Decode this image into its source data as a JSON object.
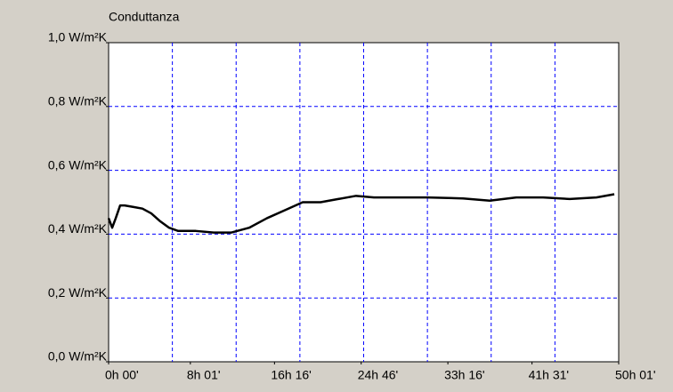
{
  "chart_data": {
    "type": "line",
    "title": "Conduttanza",
    "x": [
      0,
      21,
      42,
      68,
      94,
      147,
      199,
      251,
      304,
      356,
      409,
      513,
      618,
      723,
      827,
      932,
      1037,
      1142,
      1247,
      1351,
      1456,
      1561,
      1718,
      1875,
      2085,
      2242,
      2399,
      2556,
      2713,
      2870,
      2975
    ],
    "series": [
      {
        "color": "#000000",
        "values": [
          0.45,
          0.42,
          0.45,
          0.49,
          0.49,
          0.485,
          0.48,
          0.465,
          0.44,
          0.42,
          0.41,
          0.41,
          0.405,
          0.405,
          0.42,
          0.45,
          0.475,
          0.5,
          0.5,
          0.51,
          0.52,
          0.515,
          0.515,
          0.515,
          0.512,
          0.505,
          0.515,
          0.515,
          0.51,
          0.515,
          0.525
        ]
      }
    ],
    "xlim": [
      0,
      3001
    ],
    "xticks": [
      {
        "value": 0,
        "label": "0h 00'"
      },
      {
        "value": 481,
        "label": "8h 01'"
      },
      {
        "value": 976,
        "label": "16h 16'"
      },
      {
        "value": 1486,
        "label": "24h 46'"
      },
      {
        "value": 1996,
        "label": "33h 16'"
      },
      {
        "value": 2491,
        "label": "41h 31'"
      },
      {
        "value": 3001,
        "label": "50h 01'"
      }
    ],
    "ylim": [
      0,
      1
    ],
    "yticks": [
      {
        "value": 0,
        "label": "0,0 W/m²K"
      },
      {
        "value": 0.2,
        "label": "0,2 W/m²K"
      },
      {
        "value": 0.4,
        "label": "0,4 W/m²K"
      },
      {
        "value": 0.6,
        "label": "0,6 W/m²K"
      },
      {
        "value": 0.8,
        "label": "0,8 W/m²K"
      },
      {
        "value": 1,
        "label": "1,0 W/m²K"
      }
    ],
    "grid": true
  }
}
